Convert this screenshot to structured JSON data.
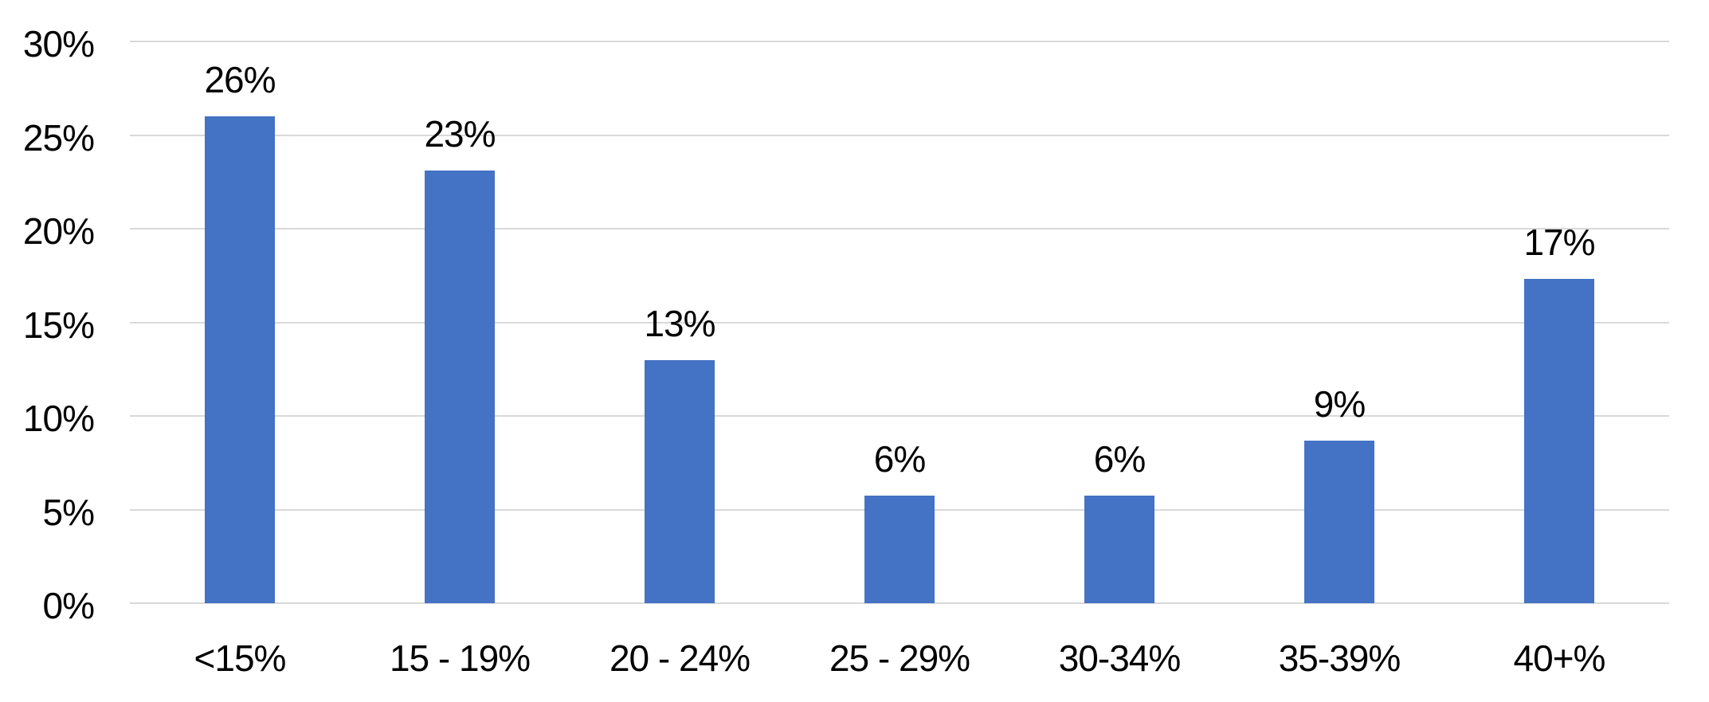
{
  "chart_data": {
    "type": "bar",
    "title": "",
    "xlabel": "",
    "ylabel": "",
    "categories": [
      "<15%",
      "15 - 19%",
      "20 - 24%",
      "25 - 29%",
      "30-34%",
      "35-39%",
      "40+%"
    ],
    "values": [
      26,
      23,
      13,
      6,
      6,
      9,
      17
    ],
    "data_labels": [
      "26%",
      "23%",
      "13%",
      "6%",
      "6%",
      "9%",
      "17%"
    ],
    "bar_heights_pct": [
      26.0,
      23.1,
      13.0,
      5.75,
      5.75,
      8.7,
      17.3
    ],
    "y_ticks": [
      "0%",
      "5%",
      "10%",
      "15%",
      "20%",
      "25%",
      "30%"
    ],
    "y_tick_values": [
      0,
      5,
      10,
      15,
      20,
      25,
      30
    ],
    "ylim": [
      0,
      30
    ],
    "grid": true,
    "legend_position": "none",
    "bar_color": "#4472C4",
    "gridline_color": "#D9D9D9",
    "text_color": "#000000",
    "background_color": "#FFFFFF"
  }
}
